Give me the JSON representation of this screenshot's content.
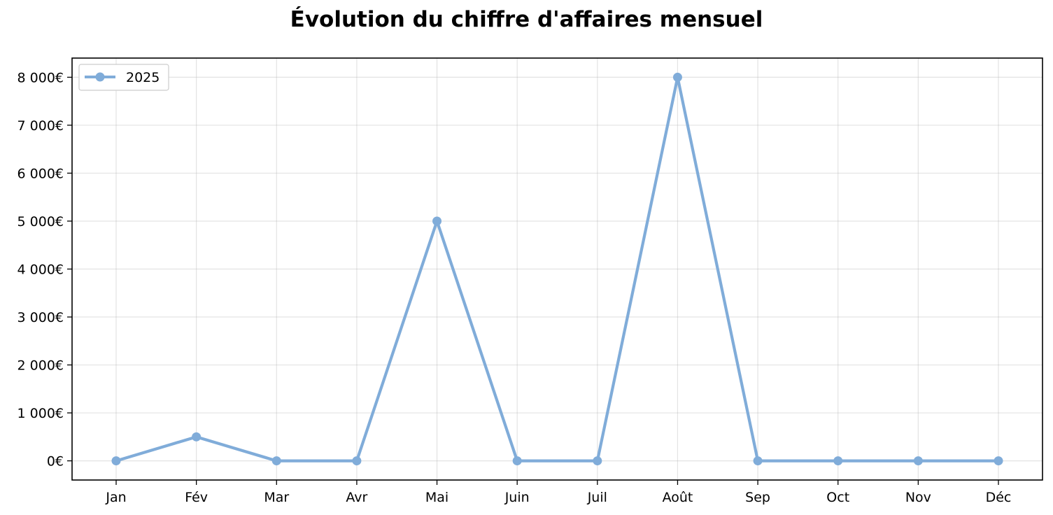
{
  "chart_data": {
    "type": "line",
    "title": "Évolution du chiffre d'affaires mensuel",
    "xlabel": "",
    "ylabel": "",
    "categories": [
      "Jan",
      "Fév",
      "Mar",
      "Avr",
      "Mai",
      "Juin",
      "Juil",
      "Août",
      "Sep",
      "Oct",
      "Nov",
      "Déc"
    ],
    "series": [
      {
        "name": "2025",
        "values": [
          0,
          500,
          0,
          0,
          5000,
          0,
          0,
          8000,
          0,
          0,
          0,
          0
        ],
        "color": "#80acd9"
      }
    ],
    "ylim": [
      -400,
      8400
    ],
    "y_ticks": [
      0,
      1000,
      2000,
      3000,
      4000,
      5000,
      6000,
      7000,
      8000
    ],
    "y_tick_labels": [
      "0€",
      "1 000€",
      "2 000€",
      "3 000€",
      "4 000€",
      "5 000€",
      "6 000€",
      "7 000€",
      "8 000€"
    ],
    "grid": true,
    "legend_position": "top-left"
  }
}
